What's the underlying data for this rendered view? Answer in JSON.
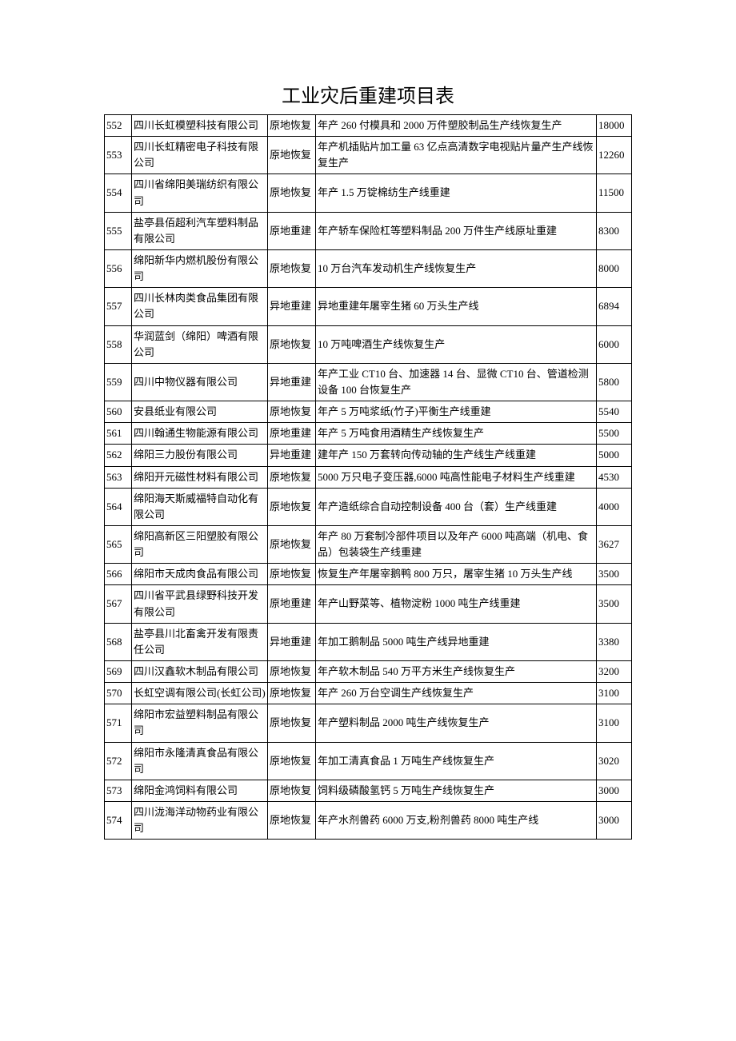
{
  "title": "工业灾后重建项目表",
  "columns": [
    "id",
    "company",
    "type",
    "description",
    "value"
  ],
  "rows": [
    {
      "id": "552",
      "company": "四川长虹模塑科技有限公司",
      "type": "原地恢复",
      "description": "年产 260 付模具和 2000 万件塑胶制品生产线恢复生产",
      "value": "18000"
    },
    {
      "id": "553",
      "company": "四川长虹精密电子科技有限公司",
      "type": "原地恢复",
      "description": "年产机插贴片加工量 63 亿点高清数字电视贴片量产生产线恢复生产",
      "value": "12260"
    },
    {
      "id": "554",
      "company": "四川省绵阳美瑞纺织有限公司",
      "type": "原地恢复",
      "description": "年产 1.5 万锭棉纺生产线重建",
      "value": "11500"
    },
    {
      "id": "555",
      "company": "盐亭县佰超利汽车塑料制品有限公司",
      "type": "原地重建",
      "description": "年产轿车保险杠等塑料制品 200 万件生产线原址重建",
      "value": "8300"
    },
    {
      "id": "556",
      "company": "绵阳新华内燃机股份有限公司",
      "type": "原地恢复",
      "description": "10 万台汽车发动机生产线恢复生产",
      "value": "8000"
    },
    {
      "id": "557",
      "company": "四川长林肉类食品集团有限公司",
      "type": "异地重建",
      "description": "异地重建年屠宰生猪 60 万头生产线",
      "value": "6894"
    },
    {
      "id": "558",
      "company": "华润蓝剑（绵阳）啤酒有限公司",
      "type": "原地恢复",
      "description": "10 万吨啤酒生产线恢复生产",
      "value": "6000"
    },
    {
      "id": "559",
      "company": "四川中物仪器有限公司",
      "type": "异地重建",
      "description": "年产工业 CT10 台、加速器 14 台、显微 CT10 台、管道检测设备 100 台恢复生产",
      "value": "5800"
    },
    {
      "id": "560",
      "company": "安县纸业有限公司",
      "type": "原地恢复",
      "description": "年产 5 万吨浆纸(竹子)平衡生产线重建",
      "value": "5540"
    },
    {
      "id": "561",
      "company": "四川翰通生物能源有限公司",
      "type": "原地重建",
      "description": "年产 5 万吨食用酒精生产线恢复生产",
      "value": "5500"
    },
    {
      "id": "562",
      "company": "绵阳三力股份有限公司",
      "type": "异地重建",
      "description": "建年产 150 万套转向传动轴的生产线生产线重建",
      "value": "5000"
    },
    {
      "id": "563",
      "company": "绵阳开元磁性材料有限公司",
      "type": "原地恢复",
      "description": "5000 万只电子变压器,6000 吨高性能电子材料生产线重建",
      "value": "4530"
    },
    {
      "id": "564",
      "company": "绵阳海天斯威福特自动化有限公司",
      "type": "原地恢复",
      "description": "年产造纸综合自动控制设备 400 台（套）生产线重建",
      "value": "4000"
    },
    {
      "id": "565",
      "company": "绵阳高新区三阳塑胶有限公司",
      "type": "原地恢复",
      "description": "年产 80 万套制冷部件项目以及年产 6000 吨高端（机电、食品）包装袋生产线重建",
      "value": "3627"
    },
    {
      "id": "566",
      "company": "绵阳市天成肉食品有限公司",
      "type": "原地恢复",
      "description": "恢复生产年屠宰鹅鸭 800 万只，屠宰生猪 10 万头生产线",
      "value": "3500"
    },
    {
      "id": "567",
      "company": "四川省平武县绿野科技开发有限公司",
      "type": "原地重建",
      "description": "年产山野菜等、植物淀粉 1000 吨生产线重建",
      "value": "3500"
    },
    {
      "id": "568",
      "company": "盐亭县川北畜禽开发有限责任公司",
      "type": "异地重建",
      "description": "年加工鹅制品 5000 吨生产线异地重建",
      "value": "3380"
    },
    {
      "id": "569",
      "company": "四川汉鑫软木制品有限公司",
      "type": "原地恢复",
      "description": "年产软木制品 540 万平方米生产线恢复生产",
      "value": "3200"
    },
    {
      "id": "570",
      "company": "长虹空调有限公司(长虹公司)",
      "type": "原地恢复",
      "description": "年产 260 万台空调生产线恢复生产",
      "value": "3100"
    },
    {
      "id": "571",
      "company": "绵阳市宏益塑料制品有限公司",
      "type": "原地恢复",
      "description": "年产塑料制品 2000 吨生产线恢复生产",
      "value": "3100"
    },
    {
      "id": "572",
      "company": "绵阳市永隆清真食品有限公司",
      "type": "原地恢复",
      "description": "年加工清真食品 1 万吨生产线恢复生产",
      "value": "3020"
    },
    {
      "id": "573",
      "company": "绵阳金鸿饲料有限公司",
      "type": "原地恢复",
      "description": "饲料级磷酸氢钙 5 万吨生产线恢复生产",
      "value": "3000"
    },
    {
      "id": "574",
      "company": "四川泷海洋动物药业有限公司",
      "type": "原地恢复",
      "description": "年产水剂兽药 6000 万支,粉剂兽药 8000 吨生产线",
      "value": "3000"
    }
  ]
}
